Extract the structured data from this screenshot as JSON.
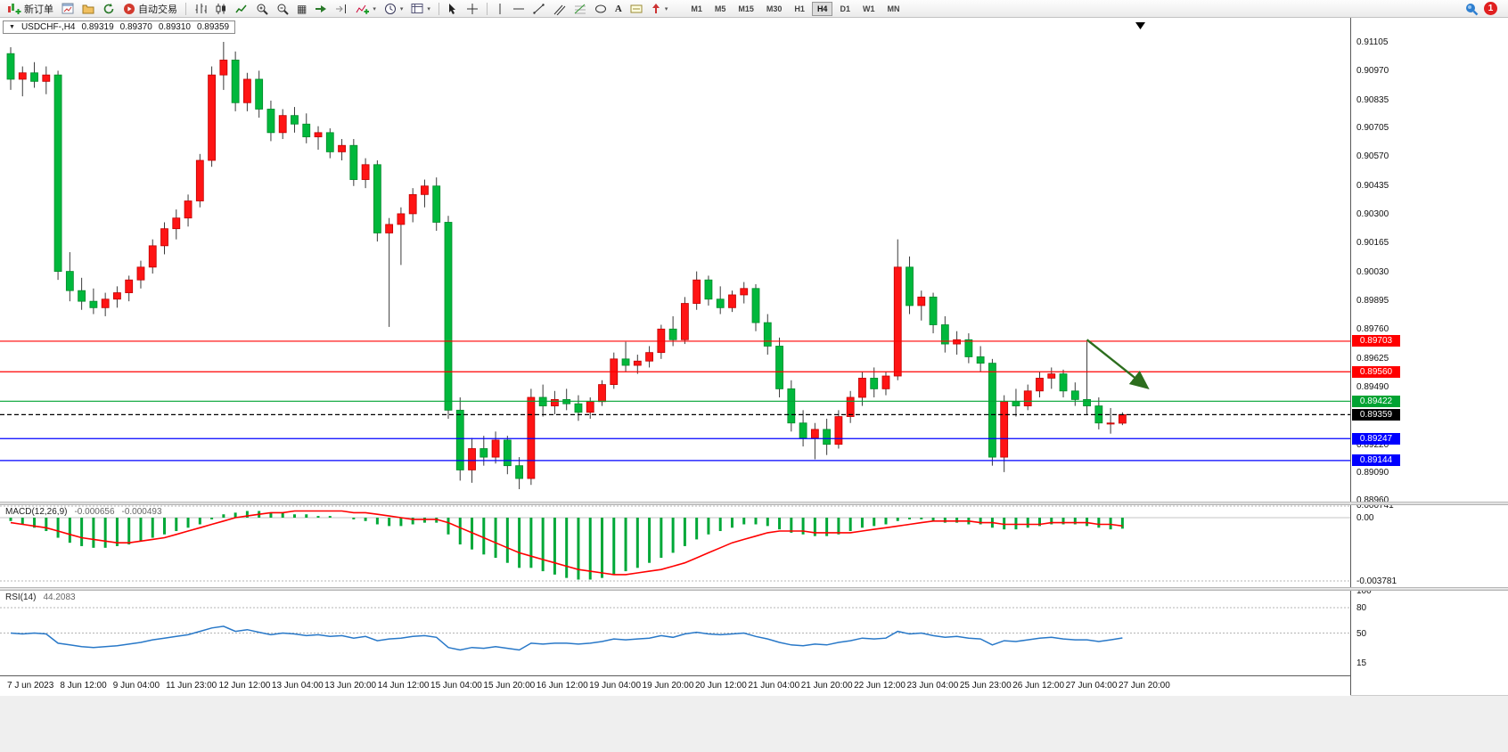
{
  "toolbar": {
    "new_order_label": "新订单",
    "auto_trading_label": "自动交易",
    "text_tool_label": "A",
    "timeframes": [
      "M1",
      "M5",
      "M15",
      "M30",
      "H1",
      "H4",
      "D1",
      "W1",
      "MN"
    ],
    "active_timeframe": "H4",
    "notification_count": "1"
  },
  "chart": {
    "symbol_title": "USDCHF-,H4",
    "ohlc_open": "0.89319",
    "ohlc_high": "0.89370",
    "ohlc_low": "0.89310",
    "ohlc_close": "0.89359"
  },
  "macd_panel": {
    "label": "MACD(12,26,9)",
    "value_main": "-0.000656",
    "value_signal": "-0.000493"
  },
  "rsi_panel": {
    "label": "RSI(14)",
    "value": "44.2083"
  },
  "chart_data": {
    "type": "candlestick",
    "symbol": "USDCHF-",
    "timeframe": "H4",
    "price_range": [
      0.8896,
      0.91105
    ],
    "price_axis_ticks": [
      "0.91105",
      "0.90970",
      "0.90835",
      "0.90705",
      "0.90570",
      "0.90435",
      "0.90300",
      "0.90165",
      "0.90030",
      "0.89895",
      "0.89760",
      "0.89625",
      "0.89490",
      "0.89355",
      "0.89220",
      "0.89090",
      "0.88960"
    ],
    "time_axis_labels": [
      "7 J un 2023",
      "8 Jun 12:00",
      "9 Jun 04:00",
      "11 Jun 23:00",
      "12 Jun 12:00",
      "13 Jun 04:00",
      "13 Jun 20:00",
      "14 Jun 12:00",
      "15 Jun 04:00",
      "15 Jun 20:00",
      "16 Jun 12:00",
      "19 Jun 04:00",
      "19 Jun 20:00",
      "20 Jun 12:00",
      "21 Jun 04:00",
      "21 Jun 20:00",
      "22 Jun 12:00",
      "23 Jun 04:00",
      "25 Jun 23:00",
      "26 Jun 12:00",
      "27 Jun 04:00",
      "27 Jun 20:00"
    ],
    "ohlc": [
      [
        0.9105,
        0.9108,
        0.9088,
        0.9093
      ],
      [
        0.9093,
        0.9099,
        0.9085,
        0.9096
      ],
      [
        0.9096,
        0.9101,
        0.9089,
        0.9092
      ],
      [
        0.9092,
        0.9099,
        0.9086,
        0.9095
      ],
      [
        0.9095,
        0.9097,
        0.8999,
        0.9003
      ],
      [
        0.9003,
        0.9012,
        0.8989,
        0.8994
      ],
      [
        0.8994,
        0.9,
        0.8985,
        0.8989
      ],
      [
        0.8989,
        0.8995,
        0.8983,
        0.8986
      ],
      [
        0.8986,
        0.8993,
        0.8982,
        0.899
      ],
      [
        0.899,
        0.8996,
        0.8986,
        0.8993
      ],
      [
        0.8993,
        0.9001,
        0.8989,
        0.8999
      ],
      [
        0.8999,
        0.9008,
        0.8995,
        0.9005
      ],
      [
        0.9005,
        0.9018,
        0.9002,
        0.9015
      ],
      [
        0.9015,
        0.9026,
        0.9011,
        0.9023
      ],
      [
        0.9023,
        0.9032,
        0.9018,
        0.9028
      ],
      [
        0.9028,
        0.9039,
        0.9024,
        0.9036
      ],
      [
        0.9036,
        0.9058,
        0.9033,
        0.9055
      ],
      [
        0.9055,
        0.9099,
        0.9052,
        0.9095
      ],
      [
        0.9095,
        0.91105,
        0.9088,
        0.9102
      ],
      [
        0.9102,
        0.9106,
        0.9078,
        0.9082
      ],
      [
        0.9082,
        0.9096,
        0.9078,
        0.9093
      ],
      [
        0.9093,
        0.9097,
        0.9075,
        0.9079
      ],
      [
        0.9079,
        0.9083,
        0.9064,
        0.9068
      ],
      [
        0.9068,
        0.9079,
        0.9065,
        0.9076
      ],
      [
        0.9076,
        0.908,
        0.9068,
        0.9072
      ],
      [
        0.9072,
        0.9077,
        0.9063,
        0.9066
      ],
      [
        0.9066,
        0.9071,
        0.906,
        0.9068
      ],
      [
        0.9068,
        0.907,
        0.9056,
        0.9059
      ],
      [
        0.9059,
        0.9065,
        0.9055,
        0.9062
      ],
      [
        0.9062,
        0.9065,
        0.9043,
        0.9046
      ],
      [
        0.9046,
        0.9056,
        0.9042,
        0.9053
      ],
      [
        0.9053,
        0.9055,
        0.9017,
        0.9021
      ],
      [
        0.9021,
        0.9028,
        0.8977,
        0.9025
      ],
      [
        0.9025,
        0.9033,
        0.9006,
        0.903
      ],
      [
        0.903,
        0.9042,
        0.9026,
        0.9039
      ],
      [
        0.9039,
        0.9046,
        0.9033,
        0.9043
      ],
      [
        0.9043,
        0.9047,
        0.9022,
        0.9026
      ],
      [
        0.9026,
        0.9029,
        0.8934,
        0.8938
      ],
      [
        0.8938,
        0.8944,
        0.8905,
        0.891
      ],
      [
        0.891,
        0.8925,
        0.8904,
        0.892
      ],
      [
        0.892,
        0.8926,
        0.8912,
        0.8916
      ],
      [
        0.8916,
        0.8928,
        0.8913,
        0.8924
      ],
      [
        0.8924,
        0.8926,
        0.8908,
        0.8912
      ],
      [
        0.8912,
        0.8916,
        0.8901,
        0.8906
      ],
      [
        0.8906,
        0.8948,
        0.8903,
        0.8944
      ],
      [
        0.8944,
        0.895,
        0.8935,
        0.894
      ],
      [
        0.894,
        0.8947,
        0.8936,
        0.8943
      ],
      [
        0.8943,
        0.8948,
        0.8938,
        0.8941
      ],
      [
        0.8941,
        0.8945,
        0.8933,
        0.8937
      ],
      [
        0.8937,
        0.8944,
        0.8934,
        0.8942
      ],
      [
        0.8942,
        0.8952,
        0.894,
        0.895
      ],
      [
        0.895,
        0.8965,
        0.8948,
        0.8962
      ],
      [
        0.8962,
        0.897,
        0.8956,
        0.8959
      ],
      [
        0.8959,
        0.8964,
        0.8955,
        0.8961
      ],
      [
        0.8961,
        0.8968,
        0.8958,
        0.8965
      ],
      [
        0.8965,
        0.8978,
        0.8962,
        0.8976
      ],
      [
        0.8976,
        0.8982,
        0.8968,
        0.8971
      ],
      [
        0.8971,
        0.8991,
        0.8969,
        0.8988
      ],
      [
        0.8988,
        0.9003,
        0.8985,
        0.8999
      ],
      [
        0.8999,
        0.9001,
        0.8987,
        0.899
      ],
      [
        0.899,
        0.8996,
        0.8983,
        0.8986
      ],
      [
        0.8986,
        0.8994,
        0.8984,
        0.8992
      ],
      [
        0.8992,
        0.8998,
        0.8988,
        0.8995
      ],
      [
        0.8995,
        0.8997,
        0.8975,
        0.8979
      ],
      [
        0.8979,
        0.8983,
        0.8964,
        0.8968
      ],
      [
        0.8968,
        0.8972,
        0.8944,
        0.8948
      ],
      [
        0.8948,
        0.8952,
        0.8928,
        0.8932
      ],
      [
        0.8932,
        0.8938,
        0.8921,
        0.8925
      ],
      [
        0.8925,
        0.8932,
        0.8915,
        0.8929
      ],
      [
        0.8929,
        0.8934,
        0.8917,
        0.8922
      ],
      [
        0.8922,
        0.8938,
        0.892,
        0.8935
      ],
      [
        0.8935,
        0.8947,
        0.8932,
        0.8944
      ],
      [
        0.8944,
        0.8956,
        0.894,
        0.8953
      ],
      [
        0.8953,
        0.8958,
        0.8944,
        0.8948
      ],
      [
        0.8948,
        0.8956,
        0.8945,
        0.8954
      ],
      [
        0.8954,
        0.9018,
        0.8952,
        0.9005
      ],
      [
        0.9005,
        0.901,
        0.8983,
        0.8987
      ],
      [
        0.8987,
        0.8994,
        0.898,
        0.8991
      ],
      [
        0.8991,
        0.8993,
        0.8974,
        0.8978
      ],
      [
        0.8978,
        0.8982,
        0.8965,
        0.8969
      ],
      [
        0.8969,
        0.8975,
        0.8964,
        0.8971
      ],
      [
        0.8971,
        0.8974,
        0.896,
        0.8963
      ],
      [
        0.8963,
        0.8968,
        0.8956,
        0.896
      ],
      [
        0.896,
        0.8962,
        0.8912,
        0.8916
      ],
      [
        0.8916,
        0.8945,
        0.8909,
        0.8942
      ],
      [
        0.8942,
        0.8948,
        0.8935,
        0.894
      ],
      [
        0.894,
        0.895,
        0.8938,
        0.8947
      ],
      [
        0.8947,
        0.8956,
        0.8944,
        0.8953
      ],
      [
        0.8953,
        0.8958,
        0.8948,
        0.8955
      ],
      [
        0.8955,
        0.8957,
        0.8944,
        0.8947
      ],
      [
        0.8947,
        0.8951,
        0.894,
        0.8943
      ],
      [
        0.8943,
        0.897,
        0.8936,
        0.894
      ],
      [
        0.894,
        0.8944,
        0.8929,
        0.8932
      ],
      [
        0.8932,
        0.8939,
        0.8927,
        0.8932
      ],
      [
        0.89319,
        0.8937,
        0.8931,
        0.89359
      ]
    ],
    "horizontal_lines": [
      {
        "price": 0.89703,
        "label": "0.89703",
        "color": "#ff0000",
        "style": "solid"
      },
      {
        "price": 0.8956,
        "label": "0.89560",
        "color": "#ff0000",
        "style": "solid"
      },
      {
        "price": 0.89422,
        "label": "0.89422",
        "color": "#00a332",
        "style": "solid"
      },
      {
        "price": 0.89359,
        "label": "0.89359",
        "color": "#000000",
        "style": "dashed"
      },
      {
        "price": 0.89247,
        "label": "0.89247",
        "color": "#0000ff",
        "style": "solid"
      },
      {
        "price": 0.89144,
        "label": "0.89144",
        "color": "#0000ff",
        "style": "solid"
      }
    ],
    "arrow_annotation": {
      "from_index": 91,
      "from_price": 0.8971,
      "to_index": 96,
      "to_price": 0.8949
    },
    "indicators": {
      "macd": {
        "histogram": [
          -0.0002,
          -0.0004,
          -0.0006,
          -0.0008,
          -0.0012,
          -0.0015,
          -0.0017,
          -0.0018,
          -0.0018,
          -0.0017,
          -0.0016,
          -0.0014,
          -0.0012,
          -0.001,
          -0.0008,
          -0.0006,
          -0.0004,
          -0.0001,
          0.0002,
          0.0003,
          0.0004,
          0.0004,
          0.0003,
          0.0003,
          0.0002,
          0.0002,
          0.0001,
          0.0001,
          0.0,
          -0.0001,
          -0.0002,
          -0.0004,
          -0.0005,
          -0.0005,
          -0.0004,
          -0.0003,
          -0.0003,
          -0.001,
          -0.0016,
          -0.0019,
          -0.0022,
          -0.0024,
          -0.0027,
          -0.003,
          -0.003,
          -0.0032,
          -0.0034,
          -0.0036,
          -0.0037,
          -0.0037,
          -0.0036,
          -0.0034,
          -0.0032,
          -0.003,
          -0.0027,
          -0.0024,
          -0.0021,
          -0.0017,
          -0.0013,
          -0.001,
          -0.0008,
          -0.0006,
          -0.0004,
          -0.0004,
          -0.0005,
          -0.0007,
          -0.0009,
          -0.001,
          -0.0011,
          -0.0011,
          -0.001,
          -0.0008,
          -0.0006,
          -0.0005,
          -0.0004,
          -0.0002,
          -0.0001,
          -0.0001,
          -0.0002,
          -0.0003,
          -0.0003,
          -0.0004,
          -0.0004,
          -0.0006,
          -0.0007,
          -0.0007,
          -0.0006,
          -0.0005,
          -0.0004,
          -0.0004,
          -0.0004,
          -0.0005,
          -0.0006,
          -0.0007,
          -0.000656
        ],
        "signal": [
          -0.0003,
          -0.0004,
          -0.0005,
          -0.0006,
          -0.0008,
          -0.001,
          -0.0012,
          -0.0013,
          -0.0014,
          -0.0015,
          -0.0015,
          -0.0014,
          -0.0013,
          -0.0012,
          -0.001,
          -0.0008,
          -0.0006,
          -0.0004,
          -0.0002,
          0.0,
          0.0001,
          0.0002,
          0.0003,
          0.0003,
          0.0004,
          0.0004,
          0.0004,
          0.0004,
          0.0004,
          0.0003,
          0.0003,
          0.0002,
          0.0001,
          0.0,
          -0.0001,
          -0.0001,
          -0.0001,
          -0.0003,
          -0.0006,
          -0.0009,
          -0.0012,
          -0.0015,
          -0.0018,
          -0.0021,
          -0.0023,
          -0.0025,
          -0.0027,
          -0.0029,
          -0.0031,
          -0.0032,
          -0.0033,
          -0.0034,
          -0.0034,
          -0.0033,
          -0.0032,
          -0.0031,
          -0.0029,
          -0.0027,
          -0.0024,
          -0.0021,
          -0.0018,
          -0.0015,
          -0.0013,
          -0.0011,
          -0.0009,
          -0.0008,
          -0.0008,
          -0.0008,
          -0.0009,
          -0.0009,
          -0.0009,
          -0.0009,
          -0.0008,
          -0.0007,
          -0.0006,
          -0.0005,
          -0.0004,
          -0.0003,
          -0.0002,
          -0.0002,
          -0.0002,
          -0.0002,
          -0.0003,
          -0.0003,
          -0.0004,
          -0.0004,
          -0.0004,
          -0.0004,
          -0.0003,
          -0.0003,
          -0.0003,
          -0.0003,
          -0.0004,
          -0.0004,
          -0.000493
        ],
        "axis_labels": [
          "0.000741",
          "0.00",
          "-0.003781"
        ],
        "range": [
          -0.003781,
          0.000741
        ]
      },
      "rsi": {
        "values": [
          50,
          49,
          50,
          49,
          38,
          36,
          34,
          33,
          34,
          35,
          37,
          39,
          42,
          44,
          46,
          48,
          52,
          56,
          58,
          52,
          54,
          51,
          48,
          50,
          49,
          47,
          48,
          46,
          47,
          44,
          46,
          41,
          43,
          44,
          46,
          47,
          45,
          33,
          30,
          33,
          32,
          34,
          32,
          30,
          38,
          37,
          38,
          38,
          37,
          38,
          40,
          43,
          42,
          43,
          44,
          47,
          45,
          49,
          51,
          49,
          48,
          49,
          50,
          46,
          43,
          39,
          36,
          35,
          37,
          36,
          39,
          41,
          44,
          43,
          44,
          52,
          49,
          50,
          47,
          45,
          46,
          44,
          43,
          36,
          41,
          40,
          42,
          44,
          45,
          43,
          42,
          42,
          40,
          42,
          44.2083
        ],
        "levels": [
          80,
          50
        ],
        "axis_labels": [
          "100",
          "80",
          "50",
          "15"
        ],
        "range": [
          0,
          100
        ]
      }
    },
    "colors": {
      "bull": "#ff1414",
      "bull_stroke": "#c00000",
      "bear": "#00b83c",
      "bear_stroke": "#008a2a",
      "wick": "#3a3a3a",
      "macd_hist": "#00a838",
      "macd_signal": "#ff0000",
      "rsi_line": "#2878c8",
      "arrow": "#2d6e1e",
      "current_price": "#000000"
    }
  }
}
